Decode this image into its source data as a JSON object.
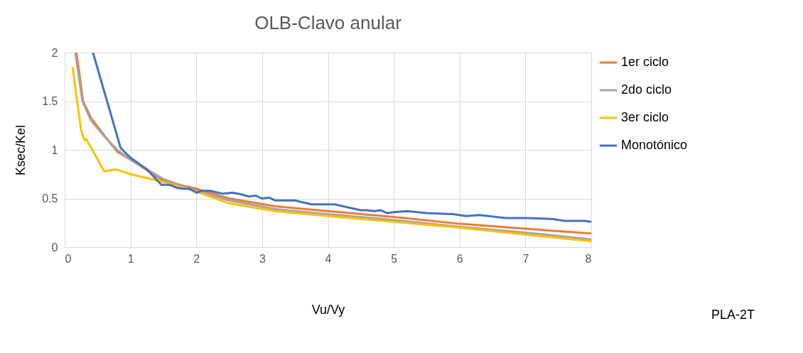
{
  "chart_data": {
    "type": "line",
    "title": "OLB-Clavo anular",
    "xlabel": "Vu/Vy",
    "ylabel": "Ksec/Kel",
    "xlim": [
      0,
      8
    ],
    "xticks": [
      0,
      1,
      2,
      3,
      4,
      5,
      6,
      7,
      8
    ],
    "ylim": [
      0,
      2
    ],
    "yticks": [
      0,
      0.5,
      1,
      1.5,
      2
    ],
    "grid": true,
    "legend": "right",
    "line_style": "solid",
    "marker": "none",
    "annotations": [
      "PLA-2T"
    ],
    "series": [
      {
        "name": "1er ciclo",
        "color": "#ed7d31",
        "x": [
          0.18,
          0.28,
          0.4,
          0.6,
          0.8,
          1.0,
          1.5,
          2,
          2.5,
          3.2,
          4,
          5,
          6,
          7,
          8
        ],
        "values": [
          2,
          1.5,
          1.33,
          1.15,
          0.98,
          0.9,
          0.68,
          0.6,
          0.5,
          0.42,
          0.37,
          0.31,
          0.24,
          0.19,
          0.14
        ]
      },
      {
        "name": "2do ciclo",
        "color": "#a5a5a5",
        "x": [
          0.16,
          0.27,
          0.4,
          0.6,
          0.8,
          1.0,
          1.5,
          2,
          2.5,
          3.2,
          4,
          5,
          6,
          7,
          8
        ],
        "values": [
          2,
          1.5,
          1.3,
          1.14,
          1.0,
          0.9,
          0.7,
          0.58,
          0.48,
          0.39,
          0.34,
          0.28,
          0.21,
          0.15,
          0.08
        ]
      },
      {
        "name": "3er ciclo",
        "color": "#ffc000",
        "x": [
          0.12,
          0.25,
          0.3,
          0.33,
          0.38,
          0.6,
          0.78,
          1.0,
          1.5,
          2,
          2.5,
          3.2,
          4,
          5,
          6,
          7,
          8
        ],
        "values": [
          1.85,
          1.2,
          1.1,
          1.11,
          1.05,
          0.78,
          0.8,
          0.75,
          0.67,
          0.57,
          0.45,
          0.37,
          0.32,
          0.26,
          0.2,
          0.13,
          0.06
        ]
      },
      {
        "name": "Monotónico",
        "color": "#4472c4",
        "x": [
          0.43,
          0.85,
          1.0,
          1.25,
          1.47,
          1.6,
          1.7,
          1.8,
          1.9,
          2.0,
          2.1,
          2.2,
          2.4,
          2.55,
          2.7,
          2.8,
          2.9,
          3.0,
          3.1,
          3.2,
          3.5,
          3.75,
          4.1,
          4.5,
          4.6,
          4.7,
          4.8,
          4.9,
          5.0,
          5.2,
          5.5,
          5.9,
          6.1,
          6.3,
          6.7,
          7.0,
          7.4,
          7.6,
          7.9,
          8.0
        ],
        "values": [
          2,
          1.02,
          0.92,
          0.8,
          0.64,
          0.64,
          0.61,
          0.6,
          0.6,
          0.56,
          0.58,
          0.58,
          0.55,
          0.56,
          0.54,
          0.52,
          0.53,
          0.5,
          0.51,
          0.48,
          0.48,
          0.44,
          0.44,
          0.38,
          0.38,
          0.37,
          0.38,
          0.35,
          0.36,
          0.37,
          0.35,
          0.34,
          0.32,
          0.33,
          0.3,
          0.3,
          0.29,
          0.27,
          0.27,
          0.26
        ]
      }
    ]
  }
}
